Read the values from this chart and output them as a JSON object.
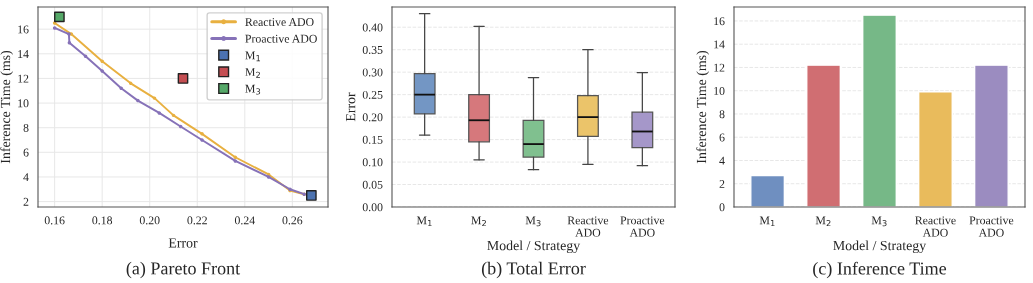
{
  "chart_data": [
    {
      "type": "line",
      "title": "(a) Pareto Front",
      "xlabel": "Error",
      "ylabel": "Inference Time (ms)",
      "xlim": [
        0.153,
        0.275
      ],
      "xticks": [
        0.16,
        0.18,
        {
          "value": 0.2,
          "label": "0.20"
        },
        0.22,
        0.24,
        0.26
      ],
      "ylim": [
        1.56,
        17.8
      ],
      "yticks": [
        2,
        4,
        6,
        8,
        10,
        12,
        14,
        16
      ],
      "grid": true,
      "legend": "top right",
      "marker": "circle",
      "series": [
        {
          "name": "Reactive ADO",
          "color": "#e8b040",
          "x": [
            0.16,
            0.167,
            0.18,
            0.192,
            0.202,
            0.21,
            0.222,
            0.236,
            0.25,
            0.259,
            0.265
          ],
          "values": [
            16.5,
            15.6,
            13.4,
            11.6,
            10.4,
            9.0,
            7.5,
            5.6,
            4.2,
            2.9,
            2.6
          ]
        },
        {
          "name": "Proactive ADO",
          "color": "#8672b8",
          "x": [
            0.16,
            0.166,
            0.1662,
            0.173,
            0.18,
            0.188,
            0.195,
            0.204,
            0.213,
            0.222,
            0.236,
            0.25,
            0.259,
            0.265
          ],
          "values": [
            16.1,
            15.6,
            14.9,
            13.8,
            12.6,
            11.2,
            10.2,
            9.2,
            8.1,
            7.0,
            5.3,
            4.0,
            3.0,
            2.6
          ]
        },
        {
          "type": "scatter",
          "marker": "square",
          "name": "M$_{1}$",
          "color": "#4c72b0",
          "x": [
            0.268
          ],
          "values": [
            2.5
          ]
        },
        {
          "type": "scatter",
          "marker": "square",
          "name": "M$_{2}$",
          "color": "#c44e52",
          "x": [
            0.214
          ],
          "values": [
            12
          ]
        },
        {
          "type": "scatter",
          "marker": "square",
          "name": "M$_{3}$",
          "color": "#55a868",
          "x": [
            0.162
          ],
          "values": [
            17
          ]
        }
      ]
    },
    {
      "type": "box",
      "title": "(b) Total Error",
      "xlabel": "Model / Strategy",
      "ylabel": "Error",
      "categories": [
        "M$_{1}$",
        "M$_{2}$",
        "M$_{3}$",
        "Reactive ADO",
        "Proactive ADO"
      ],
      "ylim": [
        0,
        0.445
      ],
      "yticks": [
        {
          "value": 0,
          "label": "0.00"
        },
        0.05,
        {
          "value": 0.1,
          "label": "0.10"
        },
        0.15,
        {
          "value": 0.2,
          "label": "0.20"
        },
        0.25,
        {
          "value": 0.3,
          "label": "0.30"
        },
        0.35,
        {
          "value": 0.4,
          "label": "0.40"
        }
      ],
      "grid": "y",
      "colors": [
        "#7396c4",
        "#d6787c",
        "#80c08f",
        "#ebc46a",
        "#a597c9"
      ],
      "boxes": [
        {
          "low": 0.16,
          "q1": 0.207,
          "median": 0.25,
          "q3": 0.297,
          "high": 0.43
        },
        {
          "low": 0.105,
          "q1": 0.145,
          "median": 0.193,
          "q3": 0.25,
          "high": 0.402
        },
        {
          "low": 0.083,
          "q1": 0.111,
          "median": 0.14,
          "q3": 0.193,
          "high": 0.288
        },
        {
          "low": 0.095,
          "q1": 0.157,
          "median": 0.2,
          "q3": 0.248,
          "high": 0.35
        },
        {
          "low": 0.092,
          "q1": 0.132,
          "median": 0.168,
          "q3": 0.211,
          "high": 0.299
        }
      ]
    },
    {
      "type": "bar",
      "title": "(c) Inference Time",
      "xlabel": "Model / Strategy",
      "ylabel": "Inference Time (ms)",
      "categories": [
        "M$_{1}$",
        "M$_{2}$",
        "M$_{3}$",
        "Reactive ADO",
        "Proactive ADO"
      ],
      "ylim": [
        0,
        17.2
      ],
      "yticks": [
        0,
        2,
        4,
        6,
        8,
        10,
        12,
        14,
        16
      ],
      "grid": "y",
      "colors": [
        "#6f8fc0",
        "#d06e72",
        "#76b887",
        "#e9bb5c",
        "#9b8cc0"
      ],
      "values": [
        2.7,
        12.2,
        16.5,
        9.9,
        12.2
      ]
    }
  ]
}
